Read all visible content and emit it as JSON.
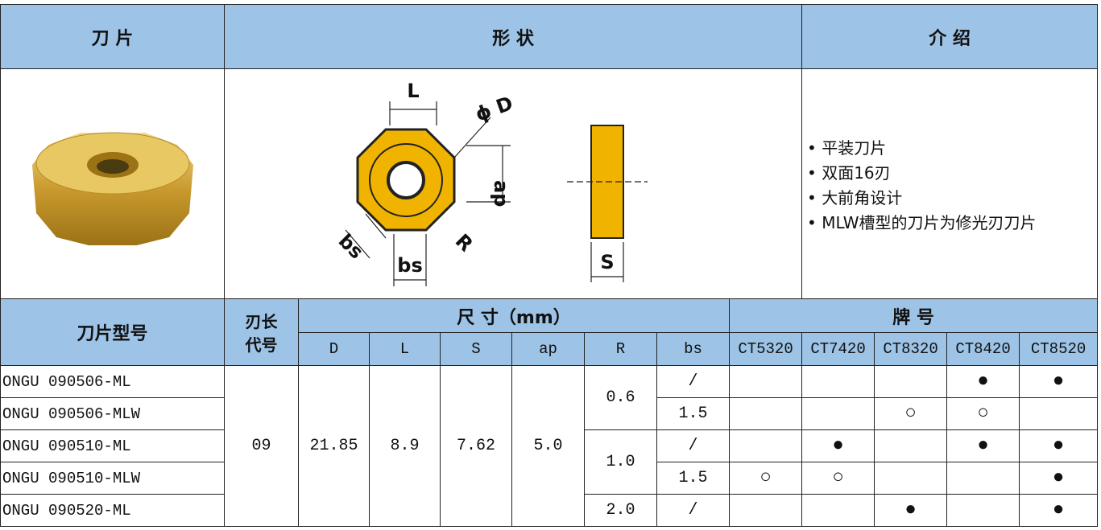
{
  "header": {
    "insert": "刀 片",
    "shape": "形 状",
    "intro": "介 绍"
  },
  "diagram": {
    "L": "L",
    "D": "ϕ D",
    "ap": "ap",
    "bs_left": "bs",
    "bs_bottom": "bs",
    "R": "R",
    "S": "S"
  },
  "intro_points": [
    "平装刀片",
    "双面16刃",
    "大前角设计",
    "MLW槽型的刀片为修光刃刀片"
  ],
  "table": {
    "col_model": "刀片型号",
    "col_code": [
      "刃长",
      "代号"
    ],
    "col_size": "尺 寸（mm）",
    "col_grade": "牌 号",
    "size_cols": [
      "D",
      "L",
      "S",
      "ap",
      "R",
      "bs"
    ],
    "grades": [
      "CT5320",
      "CT7420",
      "CT8320",
      "CT8420",
      "CT8520"
    ],
    "code": "09",
    "D": "21.85",
    "L": "8.9",
    "S": "7.62",
    "ap": "5.0",
    "R": [
      {
        "value": "0.6",
        "rows": 2
      },
      {
        "value": "1.0",
        "rows": 2
      },
      {
        "value": "2.0",
        "rows": 1
      }
    ],
    "rows": [
      {
        "model": "ONGU 090506-ML",
        "bs": "/",
        "marks": [
          null,
          null,
          null,
          "●",
          "●"
        ]
      },
      {
        "model": "ONGU 090506-MLW",
        "bs": "1.5",
        "marks": [
          null,
          null,
          "○",
          "○",
          null
        ]
      },
      {
        "model": "ONGU 090510-ML",
        "bs": "/",
        "marks": [
          null,
          "●",
          null,
          "●",
          "●"
        ]
      },
      {
        "model": "ONGU 090510-MLW",
        "bs": "1.5",
        "marks": [
          "○",
          "○",
          null,
          null,
          "●"
        ]
      },
      {
        "model": "ONGU 090520-ML",
        "bs": "/",
        "marks": [
          null,
          null,
          "●",
          null,
          "●"
        ]
      }
    ]
  }
}
